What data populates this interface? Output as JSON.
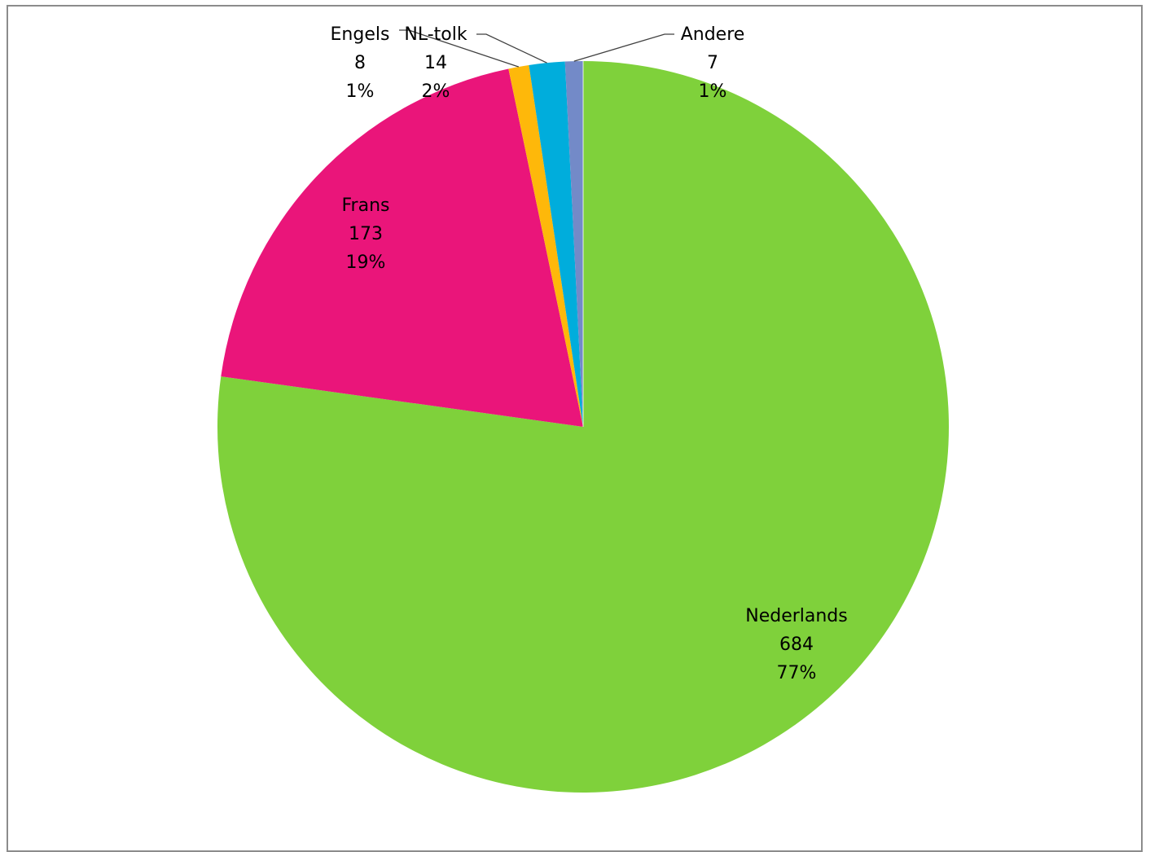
{
  "chart_data": {
    "type": "pie",
    "categories": [
      "Nederlands",
      "Frans",
      "Engels",
      "NL-tolk",
      "Andere"
    ],
    "values": [
      684,
      173,
      8,
      14,
      7
    ],
    "percent_labels": [
      "77%",
      "19%",
      "1%",
      "2%",
      "1%"
    ],
    "colors": [
      "#7fd13b",
      "#ea157a",
      "#feb80a",
      "#00addc",
      "#738ac8"
    ],
    "start_angle": "12 o'clock",
    "direction": "clockwise",
    "legend": "none",
    "show_category_labels": true,
    "show_value_labels": true,
    "show_percent_labels": true
  }
}
